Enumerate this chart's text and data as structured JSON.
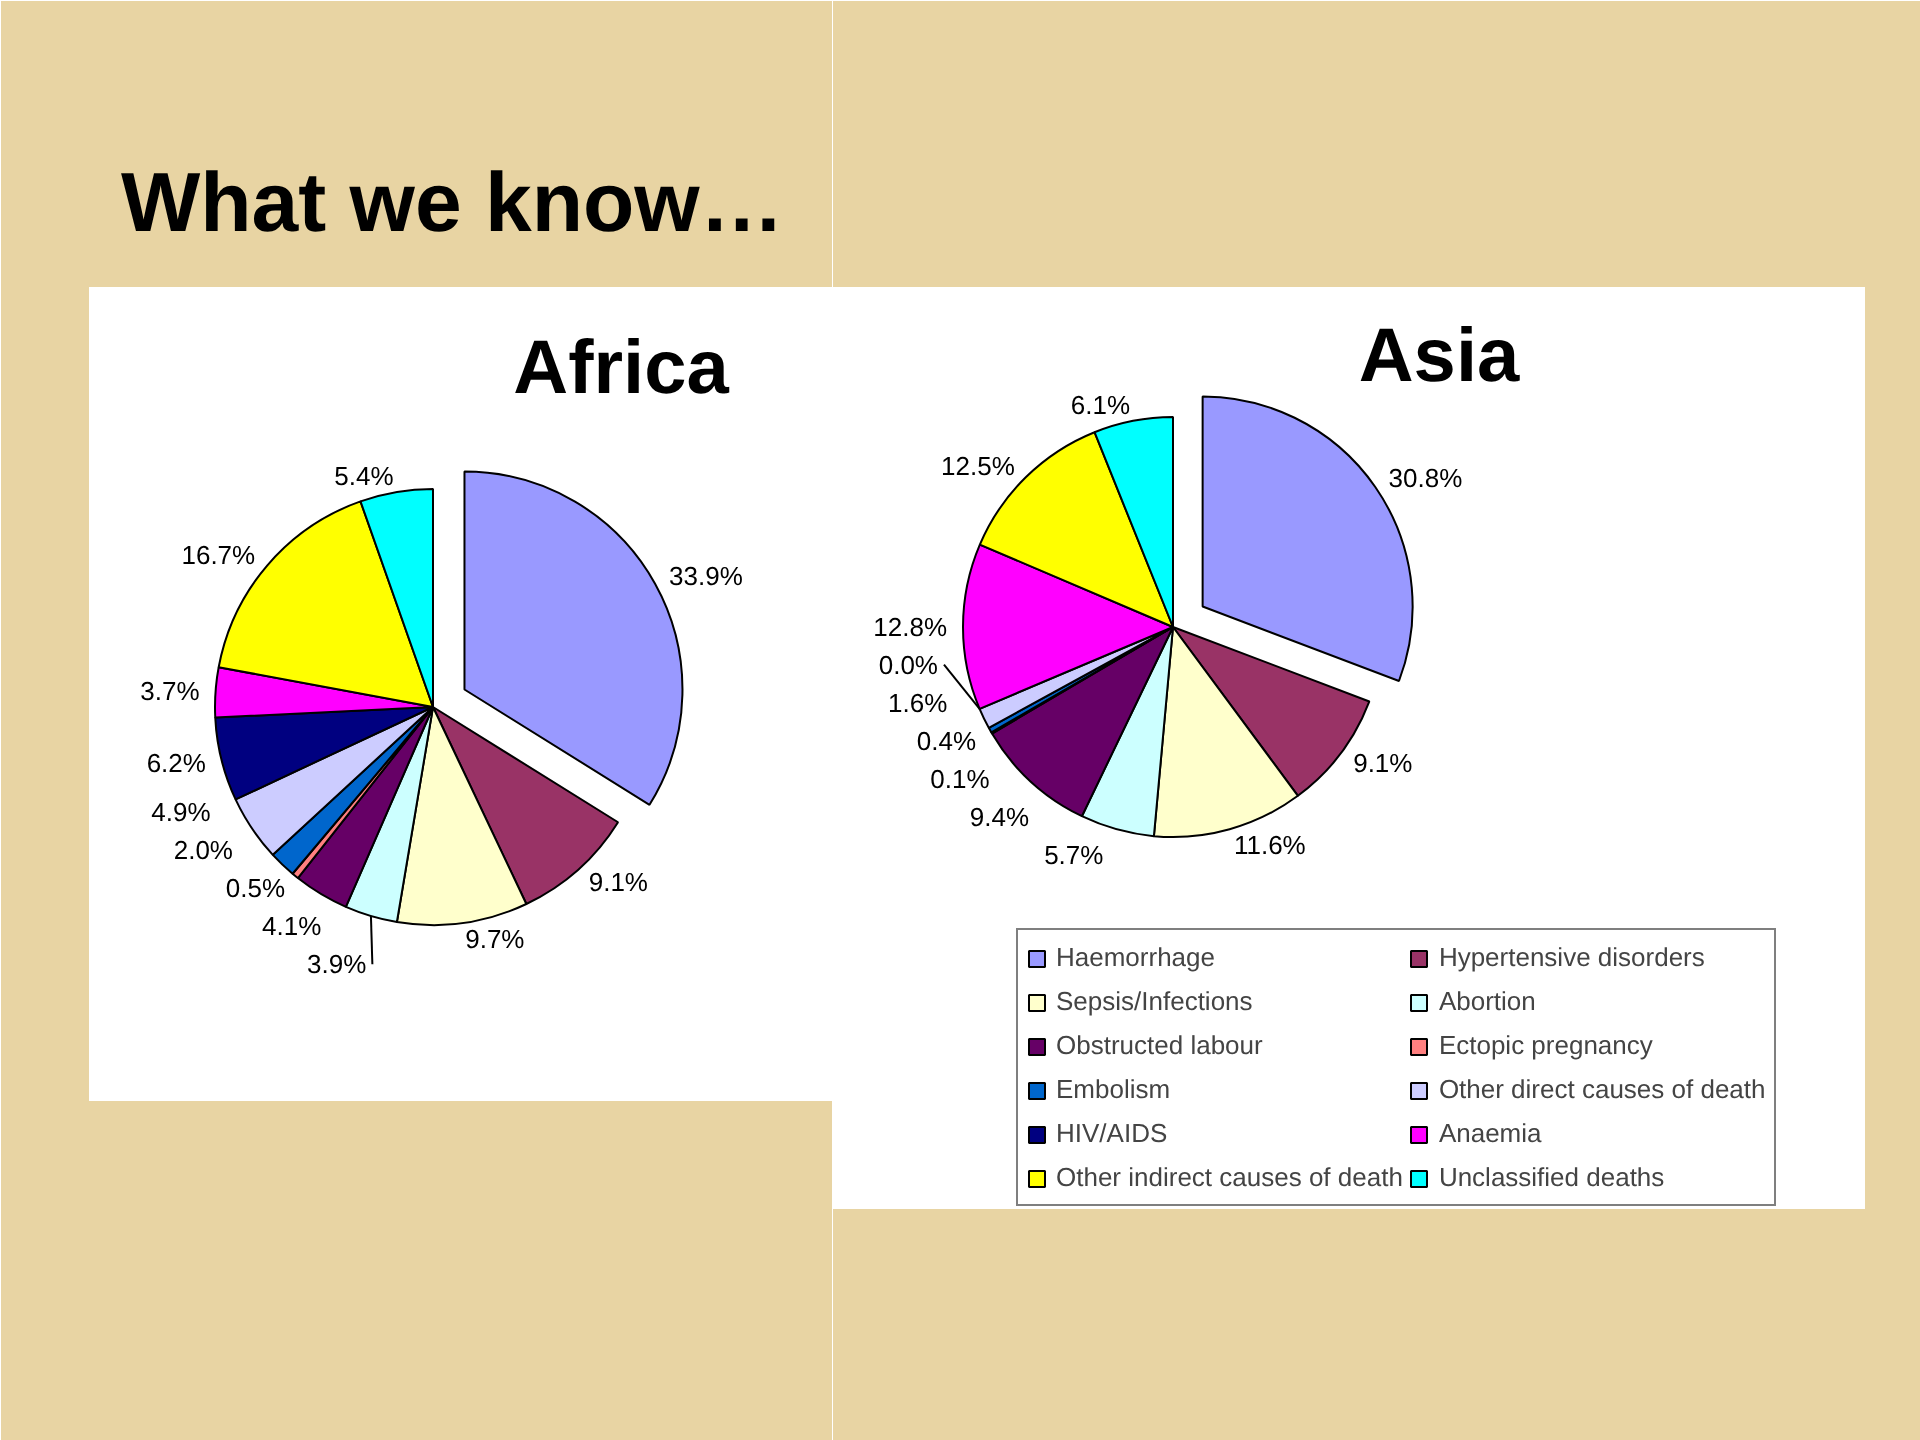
{
  "chart_data": [
    {
      "type": "pie",
      "title": "Africa",
      "annotations": [
        "What we know…"
      ],
      "values": [
        33.9,
        9.1,
        9.7,
        3.9,
        4.1,
        0.5,
        2.0,
        4.9,
        6.2,
        3.7,
        16.7,
        5.4
      ],
      "colors": [
        "#9999ff",
        "#993366",
        "#ffffcc",
        "#ccffff",
        "#660066",
        "#ff8080",
        "#0066cc",
        "#ccccff",
        "#000080",
        "#ff00ff",
        "#ffff00",
        "#00ffff"
      ],
      "value_labels": [
        "33.9%",
        "9.1%",
        "9.7%",
        "3.9%",
        "4.1%",
        "0.5%",
        "2.0%",
        "4.9%",
        "6.2%",
        "3.7%",
        "16.7%",
        "5.4%"
      ]
    },
    {
      "type": "pie",
      "title": "Asia",
      "categories": [
        "Haemorrhage",
        "Hypertensive disorders",
        "Sepsis/Infections",
        "Abortion",
        "Obstructed labour",
        "Ectopic pregnancy",
        "Embolism",
        "Other direct causes of death",
        "HIV/AIDS",
        "Anaemia",
        "Other indirect causes of death",
        "Unclassified deaths"
      ],
      "values": [
        30.8,
        9.1,
        11.6,
        5.7,
        9.4,
        0.1,
        0.4,
        1.6,
        0.0,
        12.8,
        12.5,
        6.1
      ],
      "colors": [
        "#9999ff",
        "#993366",
        "#ffffcc",
        "#ccffff",
        "#660066",
        "#ff8080",
        "#0066cc",
        "#ccccff",
        "#000080",
        "#ff00ff",
        "#ffff00",
        "#00ffff"
      ],
      "value_labels": [
        "30.8%",
        "9.1%",
        "11.6%",
        "5.7%",
        "9.4%",
        "0.1%",
        "0.4%",
        "1.6%",
        "0.0%",
        "12.8%",
        "12.5%",
        "6.1%"
      ],
      "legend": "bottom"
    }
  ]
}
